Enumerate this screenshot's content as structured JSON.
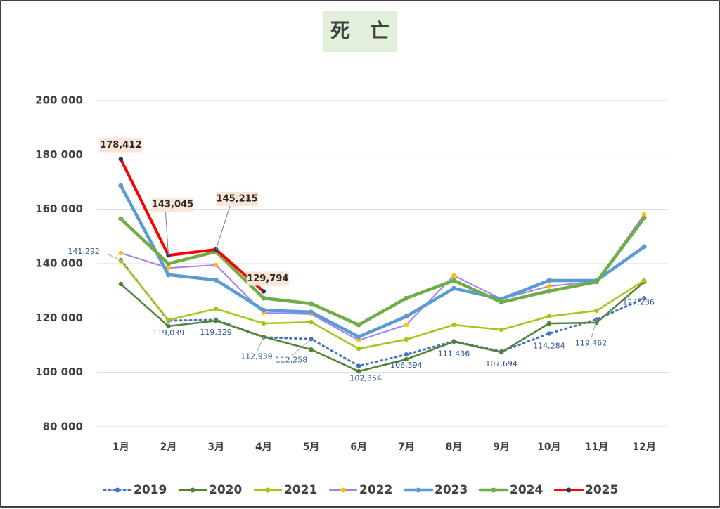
{
  "chart_data": {
    "type": "line",
    "title": "死　亡",
    "categories": [
      "1月",
      "2月",
      "3月",
      "4月",
      "5月",
      "6月",
      "7月",
      "8月",
      "9月",
      "10月",
      "11月",
      "12月"
    ],
    "ylim": [
      80000,
      200000
    ],
    "yticks": [
      {
        "value": 80000,
        "label": "80 000"
      },
      {
        "value": 100000,
        "label": "100 000"
      },
      {
        "value": 120000,
        "label": "120 000"
      },
      {
        "value": 140000,
        "label": "140 000"
      },
      {
        "value": 160000,
        "label": "160 000"
      },
      {
        "value": 180000,
        "label": "180 000"
      },
      {
        "value": 200000,
        "label": "200 000"
      }
    ],
    "grid": true,
    "legend": "bottom",
    "series": [
      {
        "name": "2019",
        "color": "#4472c4",
        "marker_color": "#4472c4",
        "dashed": true,
        "width": 3,
        "values": [
          141292,
          119039,
          119329,
          112939,
          112258,
          102354,
          106594,
          111436,
          107694,
          114284,
          119462,
          127236
        ],
        "value_labels": [
          "141,292",
          "119,039",
          "119,329",
          "112,939",
          "112,258",
          "102,354",
          "106,594",
          "111,436",
          "107,694",
          "114,284",
          "119,462",
          "127,236"
        ]
      },
      {
        "name": "2020",
        "color": "#548235",
        "marker_color": "#548235",
        "width": 2.5,
        "values": [
          132500,
          117000,
          119000,
          113100,
          108400,
          100400,
          104800,
          111300,
          107400,
          118000,
          118300,
          133300
        ]
      },
      {
        "name": "2021",
        "color": "#a2c617",
        "marker_color": "#a2c617",
        "width": 2.5,
        "values": [
          141000,
          119300,
          123400,
          118000,
          118500,
          108700,
          112100,
          117500,
          115700,
          120600,
          122700,
          133800
        ]
      },
      {
        "name": "2022",
        "color": "#a57ff0",
        "marker_color": "#ffc000",
        "width": 2,
        "values": [
          143900,
          138400,
          139500,
          121900,
          121400,
          111800,
          117500,
          135600,
          127000,
          131700,
          133500,
          158100
        ]
      },
      {
        "name": "2023",
        "color": "#5b9bd5",
        "marker_color": "#5b9bd5",
        "width": 4.5,
        "values": [
          168700,
          135900,
          134000,
          122900,
          122200,
          113100,
          120600,
          130900,
          127000,
          133800,
          133800,
          146200
        ]
      },
      {
        "name": "2024",
        "color": "#70ad47",
        "marker_color": "#70ad47",
        "width": 4.5,
        "values": [
          156500,
          140000,
          144400,
          127300,
          125300,
          117500,
          127300,
          133800,
          125800,
          129900,
          133300,
          156800
        ]
      },
      {
        "name": "2025",
        "color": "#ff0000",
        "marker_color": "#1f3864",
        "width": 4,
        "values": [
          178412,
          143045,
          145215,
          129794,
          null,
          null,
          null,
          null,
          null,
          null,
          null,
          null
        ],
        "value_labels": [
          "178,412",
          "143,045",
          "145,215",
          "129,794",
          null,
          null,
          null,
          null,
          null,
          null,
          null,
          null
        ]
      }
    ]
  }
}
